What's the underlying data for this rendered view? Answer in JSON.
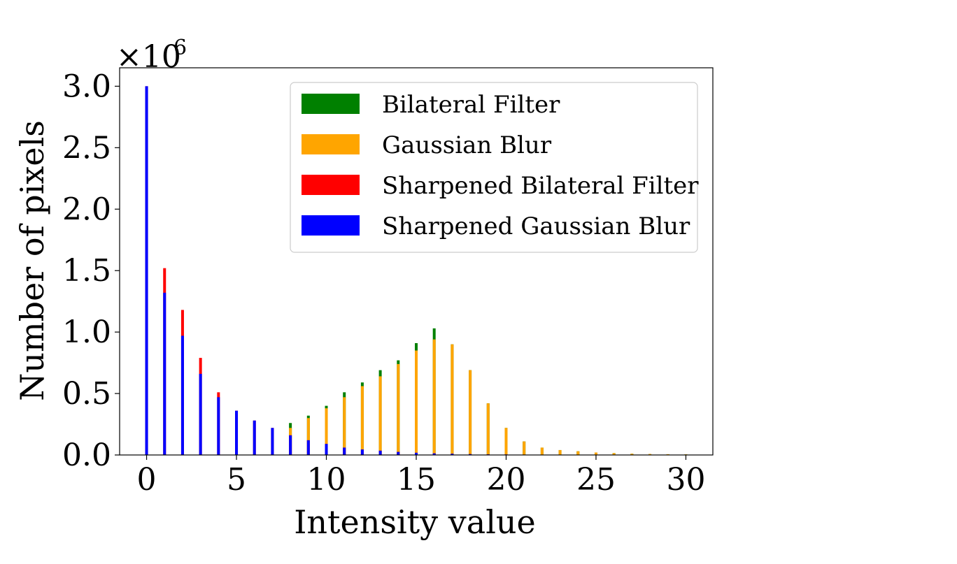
{
  "chart_data": {
    "type": "bar",
    "stacked_overlay": true,
    "xlabel": "Intensity value",
    "ylabel": "Number of pixels",
    "y_multiplier": "×10",
    "y_multiplier_exp": "6",
    "xlim": [
      -1.5,
      31.5
    ],
    "ylim": [
      0,
      3.15
    ],
    "x_ticks": [
      0,
      5,
      10,
      15,
      20,
      25,
      30
    ],
    "x_tick_labels": [
      "0",
      "5",
      "10",
      "15",
      "20",
      "25",
      "30"
    ],
    "y_ticks": [
      0.0,
      0.5,
      1.0,
      1.5,
      2.0,
      2.5,
      3.0
    ],
    "y_tick_labels": [
      "0.0",
      "0.5",
      "1.0",
      "1.5",
      "2.0",
      "2.5",
      "3.0"
    ],
    "grid": false,
    "legend_position": "top-right",
    "x": [
      0,
      1,
      2,
      3,
      4,
      5,
      6,
      7,
      8,
      9,
      10,
      11,
      12,
      13,
      14,
      15,
      16,
      17,
      18,
      19,
      20,
      21,
      22,
      23,
      24,
      25,
      26,
      27,
      28,
      29,
      30
    ],
    "series": [
      {
        "name": "Bilateral Filter",
        "color": "#008000",
        "values": [
          0,
          0,
          0,
          0,
          0,
          0,
          0,
          0,
          0.26,
          0.32,
          0.4,
          0.51,
          0.59,
          0.69,
          0.77,
          0.91,
          1.03,
          0.9,
          0.69,
          0.42,
          0.22,
          0.11,
          0.06,
          0.04,
          0.03,
          0.02,
          0.015,
          0.01,
          0.008,
          0.006,
          0.005
        ]
      },
      {
        "name": "Gaussian Blur",
        "color": "#FFA500",
        "values": [
          0,
          0,
          0,
          0,
          0,
          0,
          0,
          0,
          0.22,
          0.3,
          0.38,
          0.47,
          0.56,
          0.64,
          0.74,
          0.85,
          0.94,
          0.9,
          0.69,
          0.42,
          0.22,
          0.11,
          0.06,
          0.04,
          0.03,
          0.02,
          0.015,
          0.01,
          0.008,
          0.006,
          0.005
        ]
      },
      {
        "name": "Sharpened Bilateral Filter",
        "color": "#FF0000",
        "values": [
          3.0,
          1.52,
          1.18,
          0.79,
          0.51,
          0.36,
          0.28,
          0.22,
          0.16,
          0.12,
          0.09,
          0.06,
          0.045,
          0.035,
          0.025,
          0.018,
          0.013,
          0.01,
          0.007,
          0.005,
          0.004,
          0.003,
          0.002,
          0.0015,
          0.001,
          0.001,
          0.001,
          0.0005,
          0.0005,
          0.0005,
          0.0005
        ]
      },
      {
        "name": "Sharpened Gaussian Blur",
        "color": "#0000FF",
        "values": [
          3.0,
          1.32,
          0.97,
          0.66,
          0.47,
          0.36,
          0.28,
          0.22,
          0.16,
          0.12,
          0.09,
          0.06,
          0.045,
          0.035,
          0.025,
          0.018,
          0.013,
          0.01,
          0.007,
          0.005,
          0.004,
          0.003,
          0.002,
          0.0015,
          0.001,
          0.001,
          0.001,
          0.0005,
          0.0005,
          0.0005,
          0.0005
        ]
      }
    ]
  }
}
